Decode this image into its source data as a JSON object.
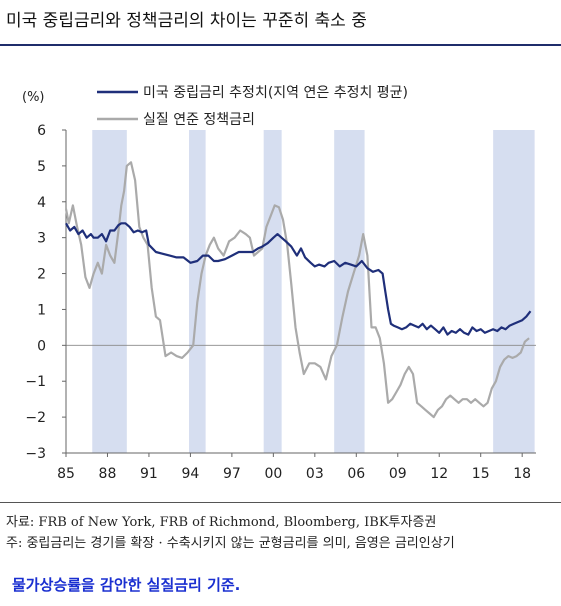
{
  "title": "미국 중립금리와 정책금리의 차이는 꾸준히 축소 중",
  "source_note": "자료: FRB of New York, FRB of Richmond, Bloomberg, IBK투자증권",
  "footnote": "주: 중립금리는 경기를 확장 · 수축시키지 않는 균형금리를 의미, 음영은 금리인상기",
  "blue_note": "물가상승률을 감안한 실질금리 기준.",
  "colors": {
    "neutral_rate": "#1f2f7a",
    "real_rate": "#aaaaaa",
    "shade": "#d6def0",
    "title_rule": "#1f2d6b",
    "blue_note": "#1a2fd0"
  },
  "chart_data": {
    "type": "line",
    "ylabel": "(%)",
    "ylim": [
      -3,
      6
    ],
    "xlim": [
      1985,
      2019
    ],
    "x_ticks": [
      1985,
      1988,
      1991,
      1994,
      1997,
      2000,
      2003,
      2006,
      2009,
      2012,
      2015,
      2018
    ],
    "x_tick_labels": [
      "85",
      "88",
      "91",
      "94",
      "97",
      "00",
      "03",
      "06",
      "09",
      "12",
      "15",
      "18"
    ],
    "y_ticks": [
      -3,
      -2,
      -1,
      0,
      1,
      2,
      3,
      4,
      5,
      6
    ],
    "y_tick_labels": [
      "−3",
      "−2",
      "−1",
      "0",
      "1",
      "2",
      "3",
      "4",
      "5",
      "6"
    ],
    "legend_position": "top",
    "shaded_periods": [
      [
        1986.9,
        1989.4
      ],
      [
        1993.9,
        1995.1
      ],
      [
        1999.3,
        2000.6
      ],
      [
        2004.4,
        2006.6
      ],
      [
        2015.9,
        2018.9
      ]
    ],
    "series": [
      {
        "name": "미국 중립금리 추정치(지역 연은 추정치 평균)",
        "x": [
          1985.0,
          1985.3,
          1985.6,
          1985.9,
          1986.2,
          1986.5,
          1986.8,
          1987.0,
          1987.3,
          1987.6,
          1987.9,
          1988.2,
          1988.5,
          1988.8,
          1989.0,
          1989.3,
          1989.6,
          1989.9,
          1990.2,
          1990.5,
          1990.8,
          1991.0,
          1991.5,
          1992.0,
          1992.5,
          1993.0,
          1993.5,
          1994.0,
          1994.5,
          1994.9,
          1995.3,
          1995.7,
          1996.0,
          1996.5,
          1997.0,
          1997.5,
          1998.0,
          1998.5,
          1998.9,
          1999.2,
          1999.6,
          2000.0,
          2000.3,
          2000.6,
          2000.9,
          2001.3,
          2001.7,
          2002.0,
          2002.3,
          2002.7,
          2003.0,
          2003.3,
          2003.7,
          2004.0,
          2004.4,
          2004.8,
          2005.2,
          2005.6,
          2006.0,
          2006.4,
          2006.8,
          2007.2,
          2007.6,
          2007.9,
          2008.1,
          2008.3,
          2008.5,
          2008.7,
          2009.0,
          2009.3,
          2009.6,
          2009.9,
          2010.2,
          2010.5,
          2010.8,
          2011.1,
          2011.4,
          2011.7,
          2012.0,
          2012.3,
          2012.6,
          2012.9,
          2013.2,
          2013.5,
          2013.8,
          2014.1,
          2014.4,
          2014.7,
          2015.0,
          2015.3,
          2015.6,
          2015.9,
          2016.2,
          2016.5,
          2016.8,
          2017.1,
          2017.4,
          2017.7,
          2018.0,
          2018.3,
          2018.6
        ],
        "values": [
          3.4,
          3.2,
          3.3,
          3.1,
          3.2,
          3.0,
          3.1,
          3.0,
          3.0,
          3.1,
          2.9,
          3.2,
          3.2,
          3.35,
          3.4,
          3.4,
          3.3,
          3.15,
          3.2,
          3.15,
          3.2,
          2.8,
          2.6,
          2.55,
          2.5,
          2.45,
          2.45,
          2.3,
          2.35,
          2.5,
          2.5,
          2.35,
          2.35,
          2.4,
          2.5,
          2.6,
          2.6,
          2.6,
          2.7,
          2.75,
          2.85,
          3.0,
          3.1,
          3.0,
          2.9,
          2.75,
          2.5,
          2.7,
          2.45,
          2.3,
          2.2,
          2.25,
          2.2,
          2.3,
          2.35,
          2.2,
          2.3,
          2.25,
          2.2,
          2.35,
          2.15,
          2.05,
          2.1,
          2.0,
          1.5,
          1.0,
          0.6,
          0.55,
          0.5,
          0.45,
          0.5,
          0.6,
          0.55,
          0.5,
          0.6,
          0.45,
          0.55,
          0.45,
          0.35,
          0.5,
          0.3,
          0.4,
          0.35,
          0.45,
          0.35,
          0.3,
          0.5,
          0.4,
          0.45,
          0.35,
          0.4,
          0.45,
          0.4,
          0.5,
          0.45,
          0.55,
          0.6,
          0.65,
          0.7,
          0.8,
          0.95
        ]
      },
      {
        "name": "실질 연준 정책금리",
        "x": [
          1985.0,
          1985.2,
          1985.5,
          1985.8,
          1986.1,
          1986.4,
          1986.7,
          1987.0,
          1987.3,
          1987.6,
          1987.9,
          1988.2,
          1988.5,
          1988.8,
          1989.0,
          1989.2,
          1989.4,
          1989.7,
          1990.0,
          1990.3,
          1990.6,
          1990.9,
          1991.2,
          1991.5,
          1991.8,
          1992.2,
          1992.6,
          1993.0,
          1993.4,
          1993.8,
          1994.2,
          1994.5,
          1994.8,
          1995.1,
          1995.4,
          1995.7,
          1996.0,
          1996.4,
          1996.8,
          1997.2,
          1997.6,
          1998.0,
          1998.3,
          1998.6,
          1998.9,
          1999.2,
          1999.5,
          1999.8,
          2000.1,
          2000.4,
          2000.7,
          2001.0,
          2001.3,
          2001.6,
          2001.9,
          2002.2,
          2002.6,
          2003.0,
          2003.4,
          2003.8,
          2004.2,
          2004.6,
          2005.0,
          2005.4,
          2005.8,
          2006.2,
          2006.5,
          2006.8,
          2007.1,
          2007.4,
          2007.7,
          2008.0,
          2008.3,
          2008.6,
          2008.9,
          2009.2,
          2009.5,
          2009.8,
          2010.1,
          2010.4,
          2010.7,
          2011.0,
          2011.3,
          2011.6,
          2011.9,
          2012.2,
          2012.5,
          2012.8,
          2013.1,
          2013.4,
          2013.7,
          2014.0,
          2014.3,
          2014.6,
          2014.9,
          2015.2,
          2015.5,
          2015.8,
          2016.1,
          2016.4,
          2016.7,
          2017.0,
          2017.3,
          2017.6,
          2017.9,
          2018.2,
          2018.5
        ],
        "values": [
          3.8,
          3.4,
          3.9,
          3.3,
          2.8,
          1.9,
          1.6,
          2.0,
          2.3,
          2.0,
          2.8,
          2.5,
          2.3,
          3.2,
          3.9,
          4.3,
          5.0,
          5.1,
          4.6,
          3.3,
          3.0,
          2.8,
          1.6,
          0.8,
          0.7,
          -0.3,
          -0.2,
          -0.3,
          -0.35,
          -0.2,
          0.0,
          1.2,
          2.0,
          2.5,
          2.8,
          3.0,
          2.7,
          2.5,
          2.9,
          3.0,
          3.2,
          3.1,
          3.0,
          2.5,
          2.6,
          2.7,
          3.3,
          3.6,
          3.9,
          3.85,
          3.5,
          2.8,
          1.7,
          0.5,
          -0.2,
          -0.8,
          -0.5,
          -0.5,
          -0.6,
          -0.95,
          -0.3,
          0.0,
          0.8,
          1.5,
          2.0,
          2.5,
          3.1,
          2.5,
          0.5,
          0.5,
          0.2,
          -0.5,
          -1.6,
          -1.5,
          -1.3,
          -1.1,
          -0.8,
          -0.6,
          -0.8,
          -1.6,
          -1.7,
          -1.8,
          -1.9,
          -2.0,
          -1.8,
          -1.7,
          -1.5,
          -1.4,
          -1.5,
          -1.6,
          -1.5,
          -1.5,
          -1.6,
          -1.5,
          -1.6,
          -1.7,
          -1.6,
          -1.2,
          -1.0,
          -0.6,
          -0.4,
          -0.3,
          -0.35,
          -0.3,
          -0.2,
          0.1,
          0.2
        ]
      }
    ]
  }
}
